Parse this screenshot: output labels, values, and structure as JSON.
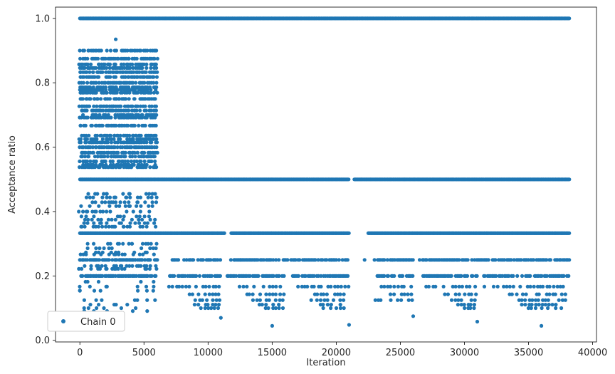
{
  "chart_data": {
    "type": "scatter",
    "title": "",
    "xlabel": "Iteration",
    "ylabel": "Acceptance ratio",
    "xlim": [
      -1900,
      40300
    ],
    "ylim": [
      -0.005,
      1.035
    ],
    "xticks": [
      0,
      5000,
      10000,
      15000,
      20000,
      25000,
      30000,
      35000,
      40000
    ],
    "xtick_labels": [
      "0",
      "5000",
      "10000",
      "15000",
      "20000",
      "25000",
      "30000",
      "35000",
      "40000"
    ],
    "yticks": [
      0.0,
      0.2,
      0.4,
      0.6,
      0.8,
      1.0
    ],
    "ytick_labels": [
      "0.0",
      "0.2",
      "0.4",
      "0.6",
      "0.8",
      "1.0"
    ],
    "grid": false,
    "legend": {
      "position": "lower-left",
      "entries": [
        "Chain 0"
      ]
    },
    "series": [
      {
        "name": "Chain 0",
        "color": "#1f77b4",
        "marker": "circle",
        "bands": [
          {
            "y": 1.0,
            "x_ranges": [
              [
                0,
                38200
              ]
            ],
            "density": "dense"
          },
          {
            "y": 0.5,
            "x_ranges": [
              [
                0,
                21000
              ],
              [
                21400,
                38200
              ]
            ],
            "density": "dense"
          },
          {
            "y": 0.333,
            "x_ranges": [
              [
                0,
                11300
              ],
              [
                11800,
                21000
              ],
              [
                22500,
                38200
              ]
            ],
            "density": "dense"
          },
          {
            "y": 0.25,
            "x_ranges": [
              [
                0,
                6000
              ],
              [
                7000,
                11000
              ],
              [
                11800,
                16200
              ],
              [
                16500,
                21000
              ],
              [
                22200,
                22300
              ],
              [
                23000,
                26000
              ],
              [
                26500,
                30800
              ],
              [
                31000,
                38200
              ]
            ],
            "density": "medium"
          },
          {
            "y": 0.2,
            "x_ranges": [
              [
                0,
                6000
              ],
              [
                7000,
                11000
              ],
              [
                11500,
                16000
              ],
              [
                16500,
                21000
              ],
              [
                23200,
                26000
              ],
              [
                26800,
                31000
              ],
              [
                31500,
                38200
              ]
            ],
            "density": "medium"
          },
          {
            "y": 0.167,
            "x_ranges": [
              [
                7000,
                11000
              ],
              [
                12500,
                16000
              ],
              [
                16500,
                21000
              ],
              [
                23500,
                26000
              ],
              [
                27000,
                31000
              ],
              [
                31500,
                38200
              ]
            ],
            "density": "sparse"
          },
          {
            "y": 0.143,
            "x_ranges": [
              [
                8500,
                11000
              ],
              [
                13000,
                16000
              ],
              [
                17500,
                20800
              ],
              [
                24000,
                26000
              ],
              [
                28500,
                31000
              ],
              [
                33500,
                38200
              ]
            ],
            "density": "sparse"
          },
          {
            "y": 0.125,
            "x_ranges": [
              [
                8800,
                11000
              ],
              [
                13500,
                16000
              ],
              [
                18000,
                20800
              ],
              [
                23000,
                26000
              ],
              [
                29000,
                31000
              ],
              [
                34000,
                38200
              ]
            ],
            "density": "sparse"
          },
          {
            "y": 0.111,
            "x_ranges": [
              [
                9000,
                11000
              ],
              [
                14000,
                15800
              ],
              [
                18500,
                20800
              ],
              [
                29500,
                31000
              ],
              [
                34500,
                38000
              ]
            ],
            "density": "sparse"
          },
          {
            "y": 0.1,
            "x_ranges": [
              [
                9500,
                11000
              ],
              [
                14500,
                15800
              ],
              [
                19000,
                20800
              ],
              [
                30000,
                31000
              ],
              [
                35000,
                38000
              ]
            ],
            "density": "sparse"
          }
        ],
        "fractions_early": {
          "x_range": [
            0,
            6000
          ],
          "levels": [
            0.9,
            0.875,
            0.857,
            0.846,
            0.833,
            0.818,
            0.8,
            0.786,
            0.778,
            0.769,
            0.75,
            0.727,
            0.714,
            0.7,
            0.692,
            0.667,
            0.636,
            0.625,
            0.615,
            0.6,
            0.583,
            0.571,
            0.556,
            0.545,
            0.538,
            0.455,
            0.444,
            0.429,
            0.417,
            0.4,
            0.385,
            0.375,
            0.364,
            0.353,
            0.3,
            0.286,
            0.273,
            0.267,
            0.25,
            0.231,
            0.222,
            0.2,
            0.182,
            0.167,
            0.154,
            0.125,
            0.111,
            0.1,
            0.091
          ]
        },
        "notable_points": [
          {
            "x": 2800,
            "y": 0.935
          },
          {
            "x": 0,
            "y": 0.155
          },
          {
            "x": 11000,
            "y": 0.07
          },
          {
            "x": 15000,
            "y": 0.045
          },
          {
            "x": 21000,
            "y": 0.048
          },
          {
            "x": 26000,
            "y": 0.075
          },
          {
            "x": 31000,
            "y": 0.058
          },
          {
            "x": 36000,
            "y": 0.045
          }
        ]
      }
    ]
  }
}
